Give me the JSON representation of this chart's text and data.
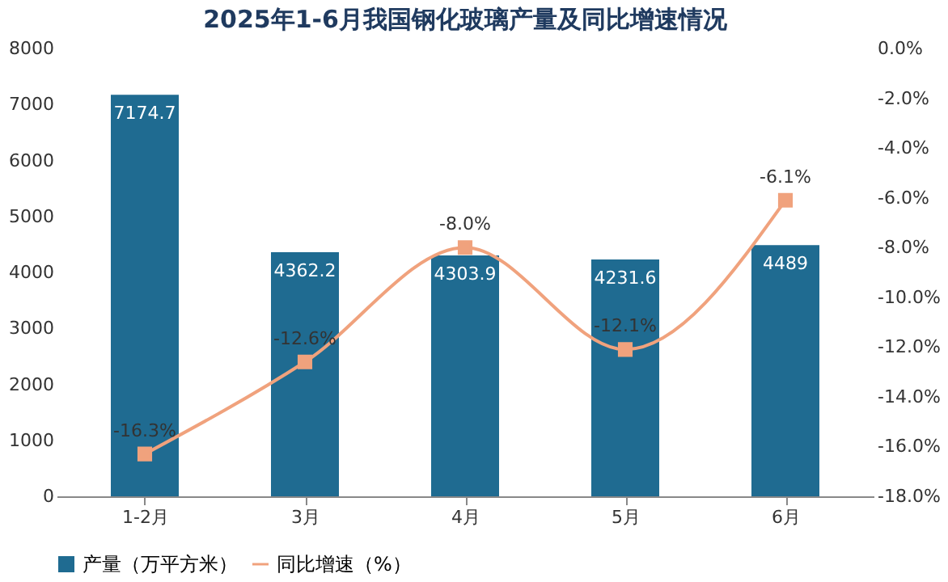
{
  "chart_data": {
    "type": "bar",
    "title": "2025年1-6月我国钢化玻璃产量及同比增速情况",
    "categories": [
      "1-2月",
      "3月",
      "4月",
      "5月",
      "6月"
    ],
    "series": [
      {
        "name": "产量（万平方米）",
        "color": "#1f6b91",
        "values": [
          7174.7,
          4362.2,
          4303.9,
          4231.6,
          4489
        ],
        "value_labels": [
          "7174.7",
          "4362.2",
          "4303.9",
          "4231.6",
          "4489"
        ]
      },
      {
        "name": "同比增速（%）",
        "type": "line",
        "axis": "y2",
        "color": "#f0a27d",
        "marker": "square",
        "values": [
          -16.3,
          -12.6,
          -8.0,
          -12.1,
          -6.1
        ],
        "value_labels": [
          "-16.3%",
          "-12.6%",
          "-8.0%",
          "-12.1%",
          "-6.1%"
        ]
      }
    ],
    "ylim": [
      0,
      8000
    ],
    "yticks": [
      0,
      1000,
      2000,
      3000,
      4000,
      5000,
      6000,
      7000,
      8000
    ],
    "y2lim": [
      -18,
      0
    ],
    "y2ticks": [
      {
        "value": 0,
        "label": "0.0%"
      },
      {
        "value": -2,
        "label": "-2.0%"
      },
      {
        "value": -4,
        "label": "-4.0%"
      },
      {
        "value": -6,
        "label": "-6.0%"
      },
      {
        "value": -8,
        "label": "-8.0%"
      },
      {
        "value": -10,
        "label": "-10.0%"
      },
      {
        "value": -12,
        "label": "-12.0%"
      },
      {
        "value": -14,
        "label": "-14.0%"
      },
      {
        "value": -16,
        "label": "-16.0%"
      },
      {
        "value": -18,
        "label": "-18.0%"
      }
    ],
    "legend": "bottom",
    "grid": false
  }
}
